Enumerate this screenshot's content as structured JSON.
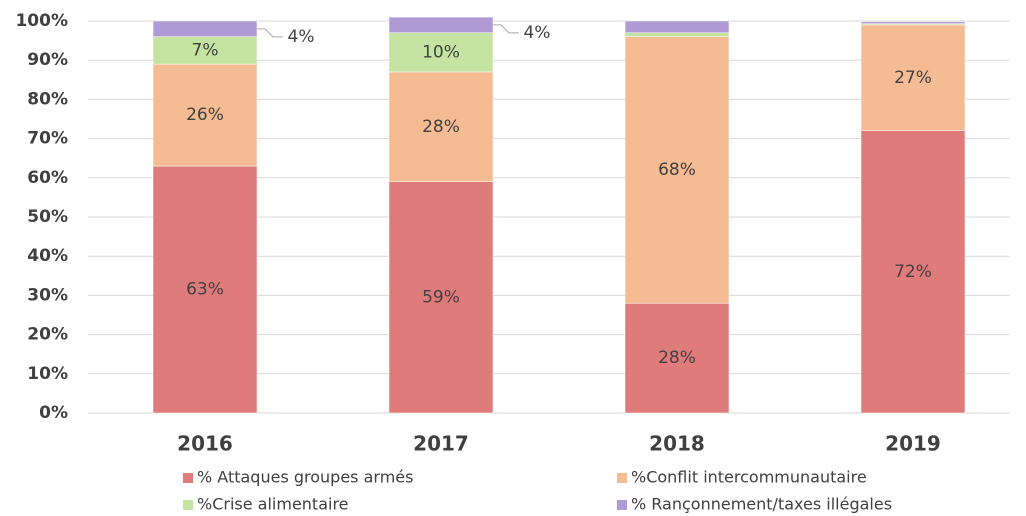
{
  "chart_data": {
    "type": "stacked_bar",
    "categories": [
      "2016",
      "2017",
      "2018",
      "2019"
    ],
    "series": [
      {
        "name": "% Attaques groupes armés",
        "color": "#e07b7b",
        "values": [
          63,
          59,
          28,
          72
        ],
        "value_labels": [
          "63%",
          "59%",
          "28%",
          "72%"
        ]
      },
      {
        "name": "%Conflit intercommunautaire",
        "color": "#f5bc94",
        "values": [
          26,
          28,
          68,
          27
        ],
        "value_labels": [
          "26%",
          "28%",
          "68%",
          "27%"
        ]
      },
      {
        "name": "%Crise alimentaire",
        "color": "#c6e4a1",
        "values": [
          7,
          10,
          1,
          0.3
        ],
        "value_labels": [
          "7%",
          "10%",
          null,
          null
        ]
      },
      {
        "name": "% Rançonnement/taxes illégales",
        "color": "#b09ad6",
        "values": [
          4,
          4,
          3,
          0.5
        ],
        "value_labels": [
          "4%",
          "4%",
          null,
          null
        ]
      }
    ],
    "ylim": [
      0,
      100
    ],
    "yticks": [
      {
        "value": 0,
        "label": "0%"
      },
      {
        "value": 10,
        "label": "10%"
      },
      {
        "value": 20,
        "label": "20%"
      },
      {
        "value": 30,
        "label": "30%"
      },
      {
        "value": 40,
        "label": "40%"
      },
      {
        "value": 50,
        "label": "50%"
      },
      {
        "value": 60,
        "label": "60%"
      },
      {
        "value": 70,
        "label": "70%"
      },
      {
        "value": 80,
        "label": "80%"
      },
      {
        "value": 90,
        "label": "90%"
      },
      {
        "value": 100,
        "label": "100%"
      }
    ],
    "grid": true,
    "legend": "bottom"
  }
}
